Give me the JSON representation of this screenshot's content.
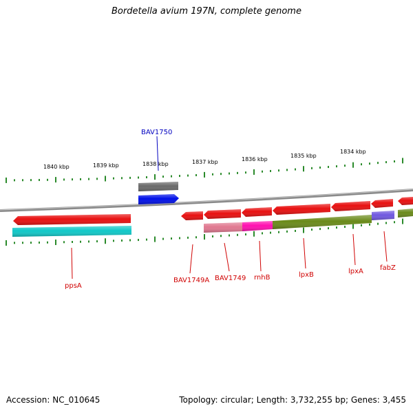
{
  "title": "Bordetella avium 197N, complete genome",
  "footer": {
    "accession": "Accession: NC_010645",
    "summary": "Topology: circular; Length: 3,732,255 bp; Genes: 3,455"
  },
  "colors": {
    "red": "#e81010",
    "cyan": "#10c8c8",
    "blue": "#0010e8",
    "gray": "#6a6a6a",
    "olive": "#6a8a1a",
    "pink": "#e878a0",
    "magenta": "#ff10b0",
    "purple": "#7058e0",
    "tick": "#2a8a2a",
    "backbone": "#8a8a8a",
    "label_red": "#d00000",
    "label_blue": "#0000c0"
  },
  "scale_labels": [
    "1840 kbp",
    "1839 kbp",
    "1838 kbp",
    "1837 kbp",
    "1836 kbp",
    "1835 kbp",
    "1834 kbp"
  ],
  "gene_labels": [
    {
      "name": "BAV1750",
      "color": "blue"
    },
    {
      "name": "ppsA",
      "color": "red"
    },
    {
      "name": "BAV1749A",
      "color": "red"
    },
    {
      "name": "BAV1749",
      "color": "red"
    },
    {
      "name": "rnhB",
      "color": "red"
    },
    {
      "name": "lpxB",
      "color": "red"
    },
    {
      "name": "lpxA",
      "color": "red"
    },
    {
      "name": "fabZ",
      "color": "red"
    }
  ]
}
